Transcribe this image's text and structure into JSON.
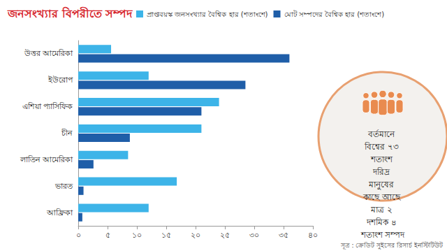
{
  "chart_data": {
    "type": "bar",
    "orientation": "horizontal",
    "title": "জনসংখ্যার বিপরীতে সম্পদ",
    "categories": [
      "উত্তর আমেরিকা",
      "ইউরোপ",
      "এশিয়া প্যাসিফিক",
      "চীন",
      "লাতিন আমেরিকা",
      "ভারত",
      "আফ্রিকা"
    ],
    "series": [
      {
        "name": "প্রাপ্তবয়স্ক জনসংখ্যার বৈশ্বিক হার (শতাংশে)",
        "color": "#3db4e8",
        "values": [
          5.6,
          12,
          24,
          21,
          8.5,
          16.8,
          12
        ]
      },
      {
        "name": "মোট সম্পদের বৈশ্বিক হার (শতাংশে)",
        "color": "#1f5ea8",
        "values": [
          36,
          28.5,
          21,
          8.8,
          2.6,
          0.9,
          0.7
        ]
      }
    ],
    "xlim": [
      0,
      40
    ],
    "xticks": [
      {
        "value": 0,
        "label": "০"
      },
      {
        "value": 5,
        "label": "৫"
      },
      {
        "value": 10,
        "label": "১০"
      },
      {
        "value": 15,
        "label": "১৫"
      },
      {
        "value": 20,
        "label": "২০"
      },
      {
        "value": 25,
        "label": "২৫"
      },
      {
        "value": 30,
        "label": "৩০"
      },
      {
        "value": 35,
        "label": "৩৫"
      },
      {
        "value": 40,
        "label": "৪০"
      }
    ],
    "grid": false,
    "legend": "top",
    "data_labels": false,
    "annotations": [
      "বর্তমানে বিশ্বের ৭৩ শতাংশ দরিদ্র মানুষের কাছে আছে মাত্র ২ দশমিক ৪ শতাংশ সম্পদ",
      "সূত্র : ক্রেডিট সুইসের রিসার্চ ইনস্টিটিউট"
    ]
  }
}
